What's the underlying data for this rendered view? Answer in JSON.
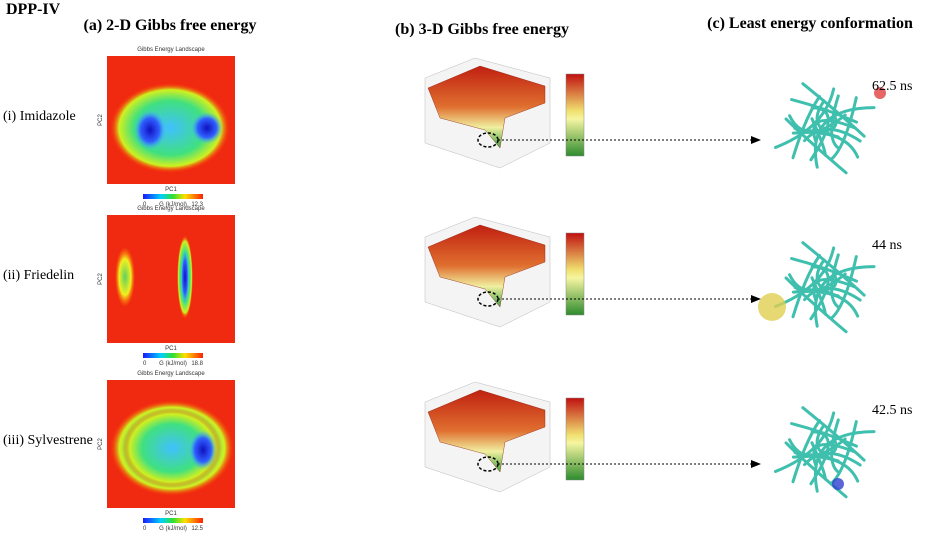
{
  "header": {
    "title": "DPP-IV"
  },
  "columns": [
    "(a) 2-D Gibbs free energy",
    "(b) 3-D Gibbs free energy",
    "(c) Least energy conformation"
  ],
  "rows": [
    {
      "label": "(i) Imidazole",
      "heatmap": {
        "title": "Gibbs Energy Landscape",
        "x_label": "PC1",
        "y_label": "PC2",
        "colorbar": {
          "min": "0",
          "unit": "G (kJ/mol)",
          "max": "12.3"
        }
      },
      "time": "62.5 ns"
    },
    {
      "label": "(ii) Friedelin",
      "heatmap": {
        "title": "Gibbs Energy Landscape",
        "x_label": "PC1",
        "y_label": "PC2",
        "colorbar": {
          "min": "0",
          "unit": "G (kJ/mol)",
          "max": "18.8"
        }
      },
      "time": "44 ns"
    },
    {
      "label": "(iii) Sylvestrene",
      "heatmap": {
        "title": "Gibbs Energy Landscape",
        "x_label": "PC1",
        "y_label": "PC2",
        "colorbar": {
          "min": "0",
          "unit": "G (kJ/mol)",
          "max": "12.5"
        }
      },
      "time": "42.5 ns"
    }
  ]
}
